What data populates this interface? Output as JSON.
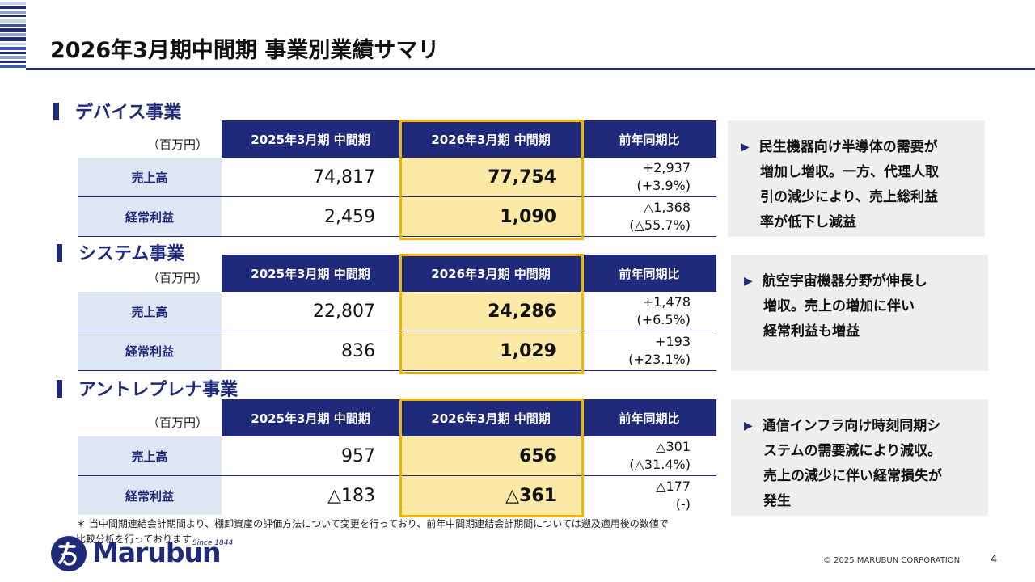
{
  "page": {
    "title": "2026年3月期中間期 事業別業績サマリ",
    "footnote_line1": "＊ 当中間期連結会計期間より、棚卸資産の評価方法について変更を行っており、前年中間期連結会計期間については遡及適用後の数値で",
    "footnote_line2": "比較分析を行っております",
    "copyright": "© 2025 MARUBUN CORPORATION",
    "page_number": "4"
  },
  "logo": {
    "name": "Marubun",
    "tagline": "Since 1844"
  },
  "colors": {
    "navy": "#1f2a7a",
    "highlight": "#fbe9a5",
    "highlight_border": "#f0b400",
    "row_label_bg": "#dfe6f3",
    "note_bg": "#eeeeee"
  },
  "table_headers": {
    "unit": "（百万円）",
    "col1": "2025年3月期 中間期",
    "col2": "2026年3月期 中間期",
    "col3": "前年同期比"
  },
  "segments": [
    {
      "title": "デバイス事業",
      "rows": [
        {
          "label": "売上高",
          "prev": "74,817",
          "curr": "77,754",
          "diff": "+2,937",
          "pct": "(+3.9%)"
        },
        {
          "label": "経常利益",
          "prev": "2,459",
          "curr": "1,090",
          "diff": "△1,368",
          "pct": "(△55.7%)"
        }
      ],
      "note_lines": [
        "民生機器向け半導体の需要が",
        "増加し増収。一方、代理人取",
        "引の減少により、売上総利益",
        "率が低下し減益"
      ]
    },
    {
      "title": "システム事業",
      "rows": [
        {
          "label": "売上高",
          "prev": "22,807",
          "curr": "24,286",
          "diff": "+1,478",
          "pct": "(+6.5%)"
        },
        {
          "label": "経常利益",
          "prev": "836",
          "curr": "1,029",
          "diff": "+193",
          "pct": "(+23.1%)"
        }
      ],
      "note_lines": [
        "航空宇宙機器分野が伸長し",
        "増収。売上の増加に伴い",
        "経常利益も増益"
      ]
    },
    {
      "title": "アントレプレナ事業",
      "rows": [
        {
          "label": "売上高",
          "prev": "957",
          "curr": "656",
          "diff": "△301",
          "pct": "(△31.4%)"
        },
        {
          "label": "経常利益",
          "prev": "△183",
          "curr": "△361",
          "diff": "△177",
          "pct": "(-)"
        }
      ],
      "note_lines": [
        "通信インフラ向け時刻同期シ",
        "ステムの需要減により減収。",
        "売上の減少に伴い経常損失が",
        "発生"
      ]
    }
  ]
}
